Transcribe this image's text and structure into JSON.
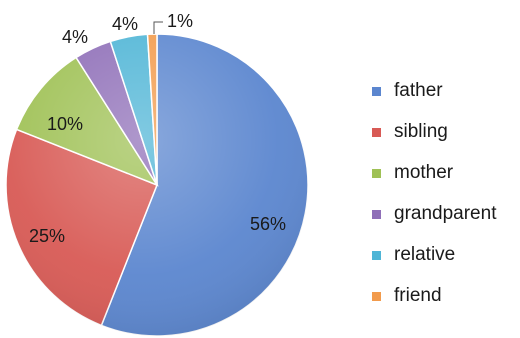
{
  "chart_data": {
    "type": "pie",
    "categories": [
      "father",
      "sibling",
      "mother",
      "grandparent",
      "relative",
      "friend"
    ],
    "values": [
      56,
      25,
      10,
      4,
      4,
      1
    ],
    "labels": [
      "56%",
      "25%",
      "10%",
      "4%",
      "4%",
      "1%"
    ],
    "colors": [
      "#5b86cf",
      "#d85a55",
      "#9fc155",
      "#8f6fb8",
      "#4fb5d6",
      "#f29b4c"
    ],
    "title": "",
    "legend_position": "right"
  }
}
